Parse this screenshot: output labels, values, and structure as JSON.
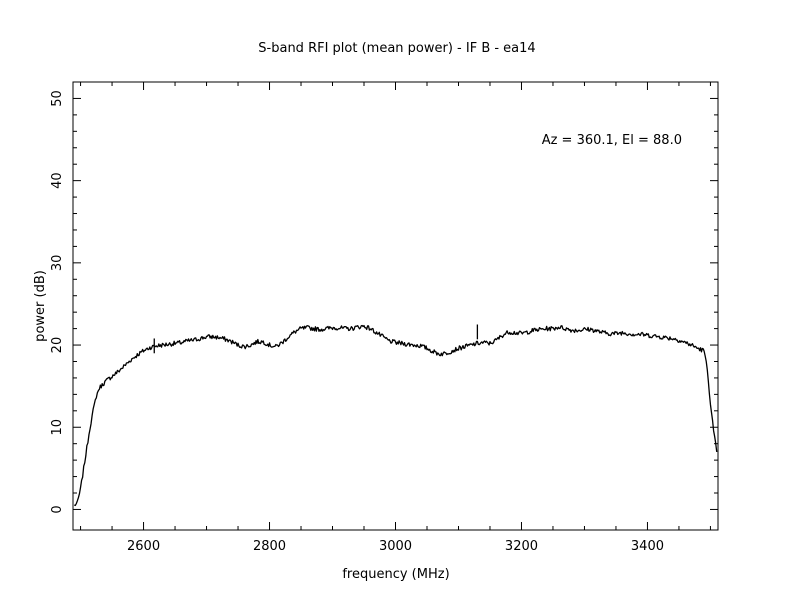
{
  "chart_data": {
    "type": "line",
    "title": "S-band RFI plot (mean power) - IF B - ea14",
    "xlabel": "frequency (MHz)",
    "ylabel": "power (dB)",
    "annotation": "Az = 360.1, El = 88.0",
    "xlim": [
      2488,
      3512
    ],
    "ylim": [
      -2.5,
      52
    ],
    "xticks": [
      2600,
      2800,
      3000,
      3200,
      3400
    ],
    "yticks": [
      0,
      10,
      20,
      30,
      40,
      50
    ],
    "grid": false,
    "series": [
      {
        "color": "#000000",
        "x": [
          2490,
          2495,
          2500,
          2505,
          2510,
          2515,
          2520,
          2525,
          2530,
          2540,
          2550,
          2560,
          2570,
          2580,
          2590,
          2600,
          2610,
          2620,
          2630,
          2640,
          2650,
          2660,
          2670,
          2680,
          2690,
          2700,
          2710,
          2720,
          2730,
          2740,
          2750,
          2760,
          2770,
          2780,
          2790,
          2800,
          2810,
          2820,
          2830,
          2840,
          2850,
          2860,
          2870,
          2880,
          2890,
          2900,
          2910,
          2920,
          2930,
          2940,
          2950,
          2960,
          2970,
          2980,
          2990,
          3000,
          3010,
          3020,
          3030,
          3040,
          3050,
          3060,
          3070,
          3080,
          3090,
          3100,
          3110,
          3120,
          3130,
          3140,
          3150,
          3160,
          3170,
          3180,
          3190,
          3200,
          3210,
          3220,
          3230,
          3240,
          3250,
          3260,
          3270,
          3280,
          3290,
          3300,
          3310,
          3320,
          3330,
          3340,
          3350,
          3360,
          3370,
          3380,
          3390,
          3400,
          3410,
          3420,
          3430,
          3440,
          3450,
          3460,
          3470,
          3480,
          3490,
          3495,
          3500,
          3505,
          3510
        ],
        "y": [
          0.5,
          0.8,
          2.5,
          5.0,
          7.5,
          10.0,
          12.0,
          13.8,
          14.8,
          15.6,
          16.2,
          16.8,
          17.5,
          18.2,
          18.8,
          19.3,
          19.7,
          19.9,
          20.0,
          20.1,
          20.2,
          20.3,
          20.5,
          20.6,
          20.8,
          21.0,
          21.0,
          20.9,
          20.7,
          20.4,
          20.0,
          19.8,
          20.0,
          20.4,
          20.4,
          20.0,
          19.8,
          20.3,
          21.0,
          21.6,
          22.0,
          22.1,
          22.0,
          21.9,
          22.0,
          22.1,
          22.1,
          22.0,
          22.0,
          22.2,
          22.3,
          22.0,
          21.5,
          21.0,
          20.5,
          20.3,
          20.2,
          20.1,
          20.0,
          19.9,
          19.6,
          19.2,
          18.9,
          19.0,
          19.3,
          19.6,
          19.8,
          20.0,
          20.2,
          20.3,
          20.2,
          20.6,
          21.2,
          21.6,
          21.5,
          21.4,
          21.6,
          21.8,
          21.9,
          22.0,
          22.0,
          22.2,
          22.0,
          21.8,
          21.8,
          21.9,
          21.9,
          21.7,
          21.5,
          21.4,
          21.4,
          21.5,
          21.4,
          21.3,
          21.3,
          21.2,
          21.1,
          21.0,
          20.9,
          20.8,
          20.6,
          20.3,
          20.0,
          19.6,
          19.3,
          17.0,
          13.0,
          9.5,
          7.0
        ]
      }
    ],
    "spikes": [
      {
        "x": 2617,
        "y": 20.8
      },
      {
        "x": 3130,
        "y": 22.5
      }
    ]
  }
}
